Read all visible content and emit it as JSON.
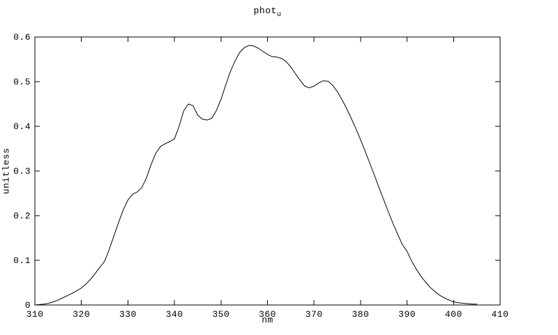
{
  "title": {
    "base": "phot",
    "sub": "u"
  },
  "axes": {
    "xlabel": "nm",
    "ylabel": "unitless"
  },
  "chart_data": {
    "type": "line",
    "title": "phot_u",
    "xlabel": "nm",
    "ylabel": "unitless",
    "xlim": [
      310,
      410
    ],
    "ylim": [
      0,
      0.6
    ],
    "xticks": [
      310,
      320,
      330,
      340,
      350,
      360,
      370,
      380,
      390,
      400,
      410
    ],
    "xtick_labels": [
      "310",
      "320",
      "330",
      "340",
      "350",
      "360",
      "370",
      "380",
      "390",
      "400",
      "410"
    ],
    "yticks": [
      0,
      0.1,
      0.2,
      0.3,
      0.4,
      0.5,
      0.6
    ],
    "ytick_labels": [
      "0",
      "0.1",
      "0.2",
      "0.3",
      "0.4",
      "0.5",
      "0.6"
    ],
    "grid": false,
    "legend": "none",
    "line_color": "#000000",
    "background": "#ffffff",
    "tick_style": "inward-mirrored",
    "series": [
      {
        "name": "phot_u",
        "x": [
          310,
          311,
          312,
          313,
          314,
          315,
          316,
          317,
          318,
          319,
          320,
          321,
          322,
          323,
          324,
          325,
          326,
          327,
          328,
          329,
          330,
          331,
          332,
          333,
          334,
          335,
          336,
          337,
          338,
          339,
          340,
          341,
          342,
          343,
          344,
          345,
          346,
          347,
          348,
          349,
          350,
          351,
          352,
          353,
          354,
          355,
          356,
          357,
          358,
          359,
          360,
          361,
          362,
          363,
          364,
          365,
          366,
          367,
          368,
          369,
          370,
          371,
          372,
          373,
          374,
          375,
          376,
          377,
          378,
          379,
          380,
          381,
          382,
          383,
          384,
          385,
          386,
          387,
          388,
          389,
          390,
          391,
          392,
          393,
          394,
          395,
          396,
          397,
          398,
          399,
          400,
          401,
          402,
          403,
          404,
          405
        ],
        "y": [
          0.0,
          0.001,
          0.002,
          0.004,
          0.007,
          0.011,
          0.016,
          0.021,
          0.026,
          0.032,
          0.038,
          0.047,
          0.058,
          0.071,
          0.085,
          0.098,
          0.125,
          0.155,
          0.185,
          0.213,
          0.235,
          0.248,
          0.253,
          0.263,
          0.285,
          0.315,
          0.34,
          0.355,
          0.361,
          0.366,
          0.372,
          0.4,
          0.435,
          0.45,
          0.446,
          0.425,
          0.416,
          0.414,
          0.418,
          0.435,
          0.46,
          0.492,
          0.522,
          0.546,
          0.565,
          0.576,
          0.581,
          0.58,
          0.575,
          0.568,
          0.561,
          0.556,
          0.555,
          0.552,
          0.545,
          0.533,
          0.518,
          0.503,
          0.49,
          0.486,
          0.49,
          0.497,
          0.502,
          0.501,
          0.492,
          0.478,
          0.46,
          0.44,
          0.418,
          0.395,
          0.37,
          0.344,
          0.317,
          0.29,
          0.262,
          0.235,
          0.208,
          0.182,
          0.158,
          0.135,
          0.12,
          0.098,
          0.08,
          0.064,
          0.051,
          0.039,
          0.03,
          0.022,
          0.016,
          0.011,
          0.007,
          0.005,
          0.004,
          0.003,
          0.002,
          0.002
        ]
      }
    ]
  }
}
